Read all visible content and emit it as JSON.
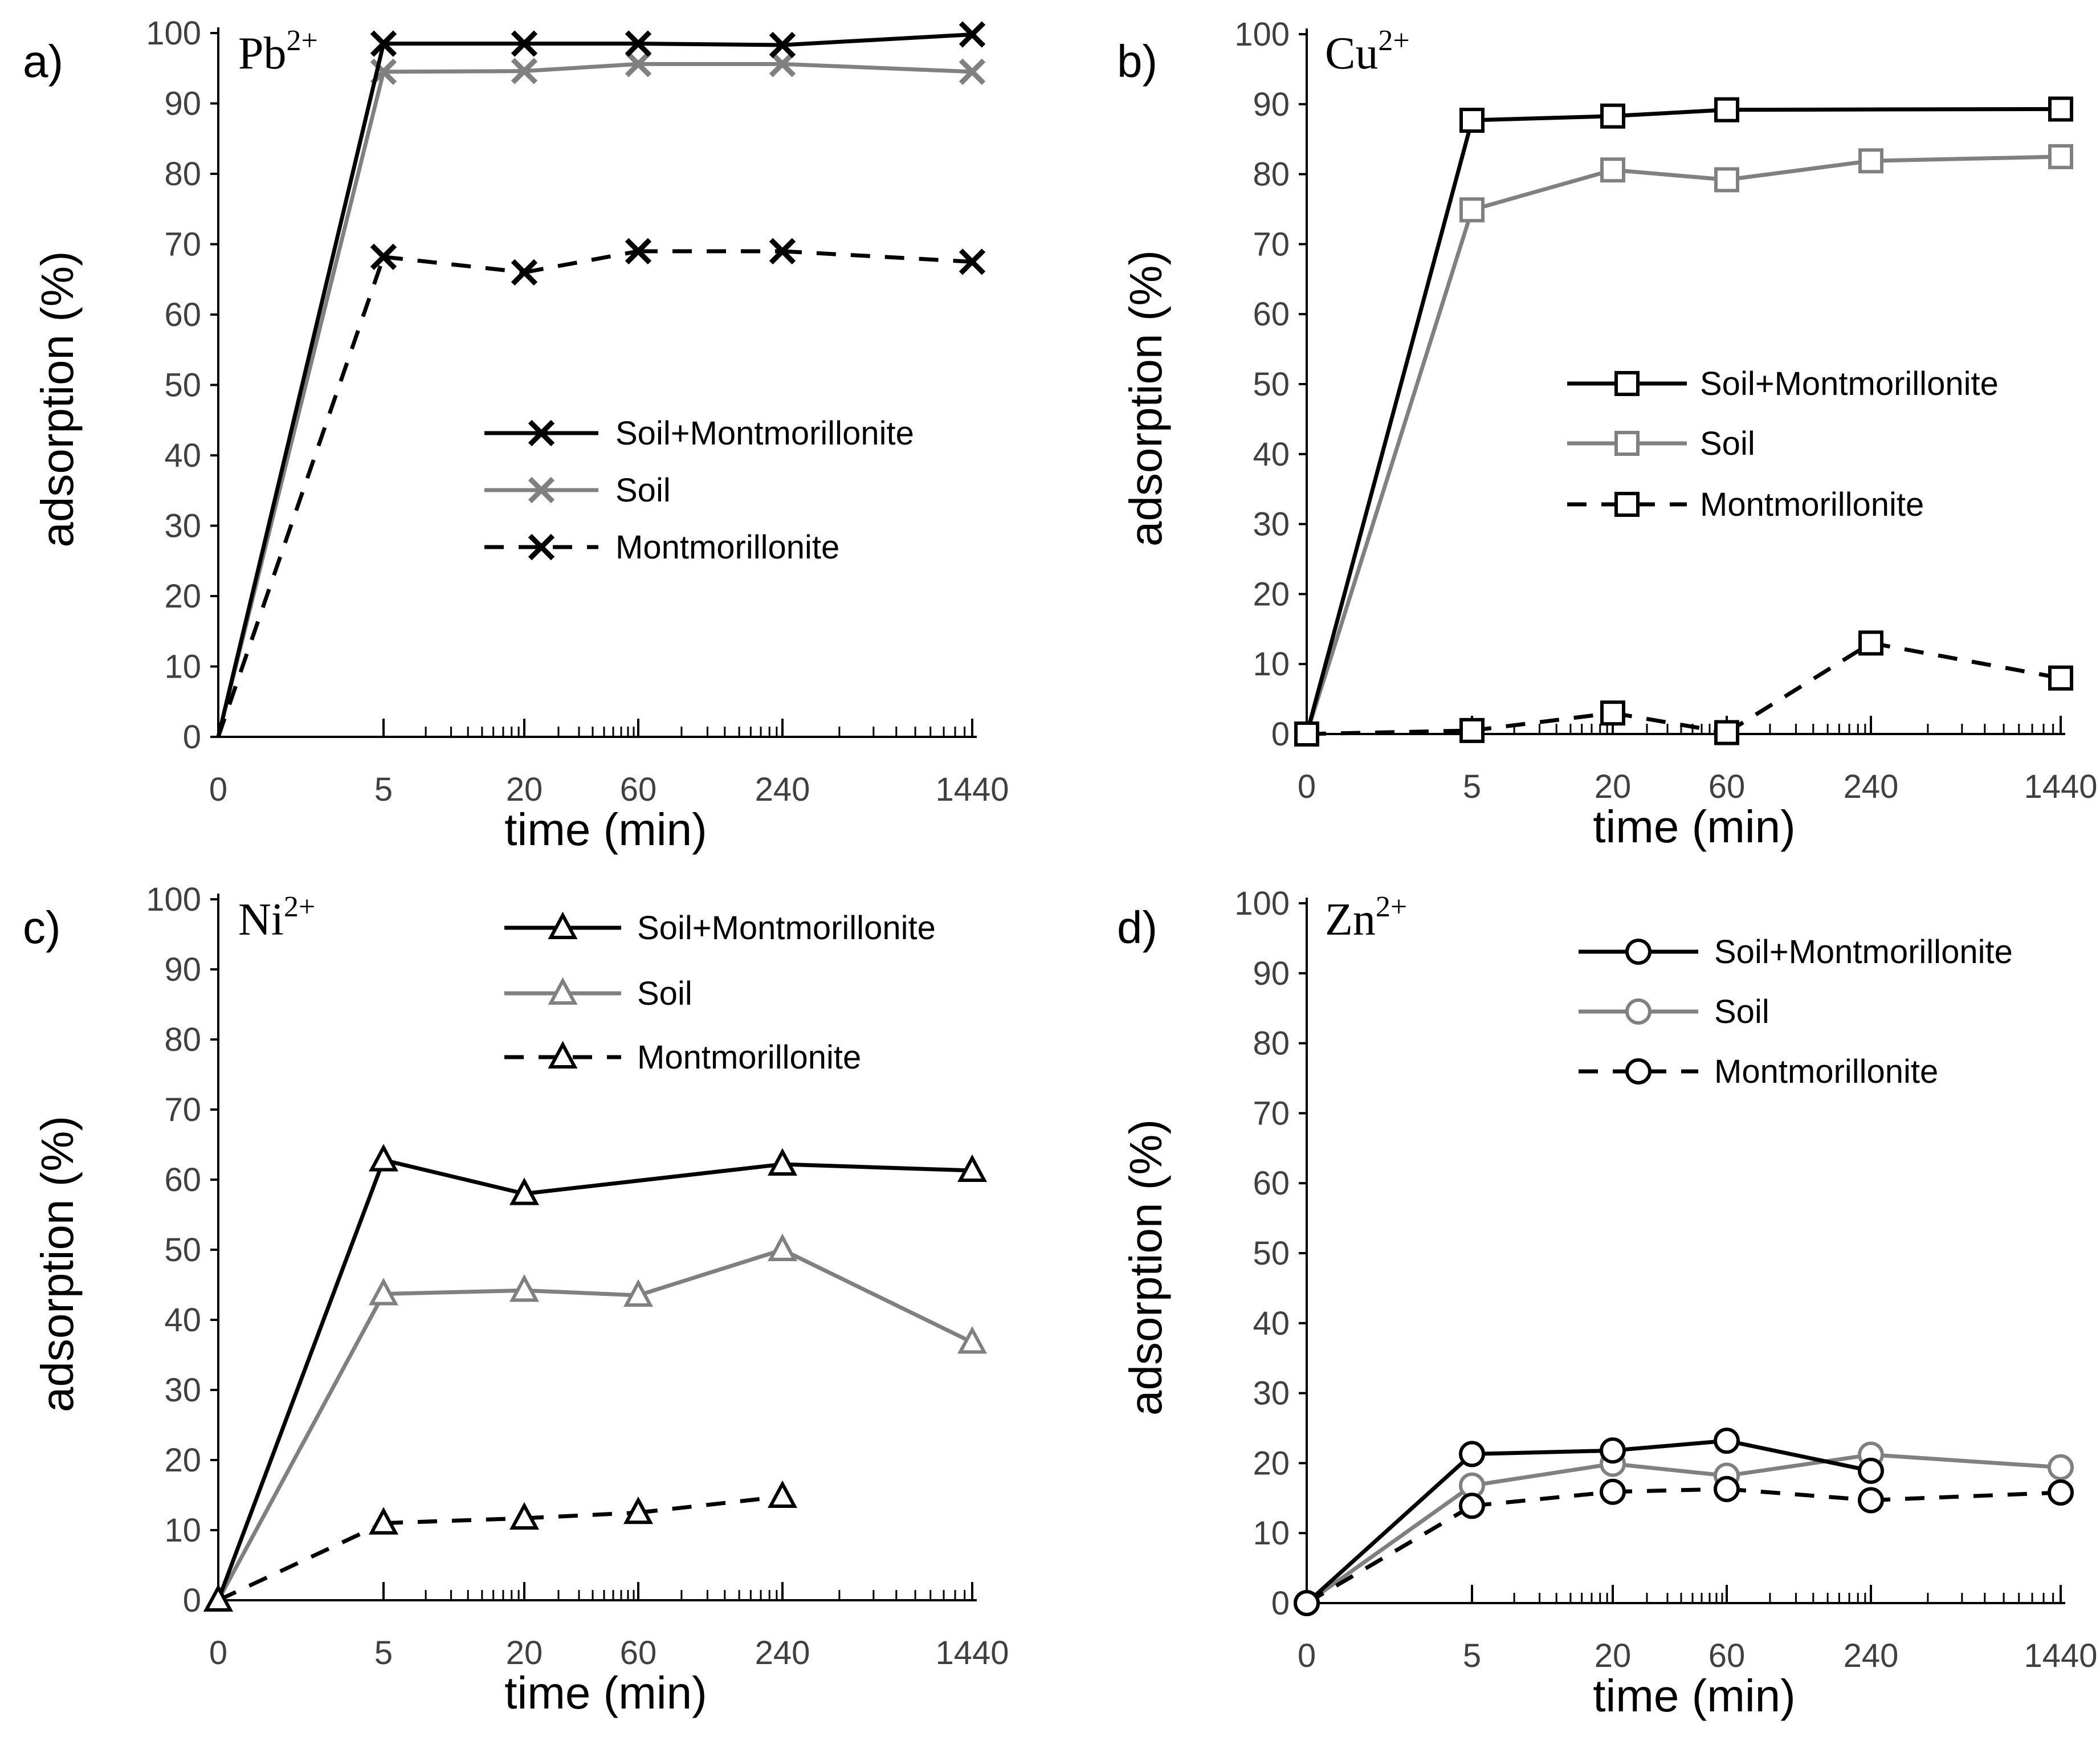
{
  "figure": {
    "x_ticks": [
      "0",
      "5",
      "20",
      "60",
      "240",
      "1440"
    ],
    "y_ticks": [
      "0",
      "10",
      "20",
      "30",
      "40",
      "50",
      "60",
      "70",
      "80",
      "90",
      "100"
    ],
    "ylabel": "adsorption (%)",
    "xlabel": "time (min)"
  },
  "colors": {
    "black": "#000000",
    "gray": "#808080"
  },
  "chart_data": [
    {
      "type": "line",
      "panel_label": "a)",
      "ion": "Pb",
      "ion_charge": "2+",
      "marker": "x-icon",
      "categories": [
        "0",
        "5",
        "20",
        "60",
        "240",
        "1440"
      ],
      "x": [
        0,
        5,
        20,
        60,
        240,
        1440
      ],
      "xlabel": "time (min)",
      "ylabel": "adsorption (%)",
      "ylim": [
        0,
        100
      ],
      "legend_placement": "center-right",
      "series": [
        {
          "name": "Soil+Montmorillonite",
          "color": "#000000",
          "style": "solid",
          "values": [
            0,
            98.5,
            98.5,
            98.5,
            98.3,
            99.8
          ]
        },
        {
          "name": "Soil",
          "color": "#808080",
          "style": "solid",
          "values": [
            0,
            94.5,
            94.6,
            95.6,
            95.6,
            94.5
          ]
        },
        {
          "name": "Montmorillonite",
          "color": "#000000",
          "style": "dashed",
          "values": [
            0,
            68.2,
            66,
            69,
            69,
            67.5
          ]
        }
      ]
    },
    {
      "type": "line",
      "panel_label": "b)",
      "ion": "Cu",
      "ion_charge": "2+",
      "marker": "square-icon",
      "categories": [
        "0",
        "5",
        "20",
        "60",
        "240",
        "1440"
      ],
      "x": [
        0,
        5,
        20,
        60,
        240,
        1440
      ],
      "xlabel": "time (min)",
      "ylabel": "adsorption (%)",
      "ylim": [
        0,
        100
      ],
      "legend_placement": "center-right",
      "series": [
        {
          "name": "Soil+Montmorillonite",
          "color": "#000000",
          "style": "solid",
          "values": [
            0,
            87.7,
            88.3,
            89.2,
            null,
            89.3
          ]
        },
        {
          "name": "Soil",
          "color": "#808080",
          "style": "solid",
          "values": [
            0,
            74.9,
            80.6,
            79.2,
            81.9,
            82.5
          ]
        },
        {
          "name": "Montmorillonite",
          "color": "#000000",
          "style": "dashed",
          "values": [
            0,
            0.5,
            3,
            0.2,
            13,
            8
          ]
        }
      ]
    },
    {
      "type": "line",
      "panel_label": "c)",
      "ion": "Ni",
      "ion_charge": "2+",
      "marker": "triangle-icon",
      "categories": [
        "0",
        "5",
        "20",
        "60",
        "240",
        "1440"
      ],
      "x": [
        0,
        5,
        20,
        60,
        240,
        1440
      ],
      "xlabel": "time (min)",
      "ylabel": "adsorption (%)",
      "ylim": [
        0,
        100
      ],
      "legend_placement": "top-right",
      "series": [
        {
          "name": "Soil+Montmorillonite",
          "color": "#000000",
          "style": "solid",
          "values": [
            0,
            62.8,
            58,
            null,
            62.2,
            61.3
          ]
        },
        {
          "name": "Soil",
          "color": "#808080",
          "style": "solid",
          "values": [
            0,
            43.7,
            44.2,
            43.5,
            50,
            36.8
          ]
        },
        {
          "name": "Montmorillonite",
          "color": "#000000",
          "style": "dashed",
          "values": [
            0,
            11,
            11.7,
            12.5,
            14.8,
            null
          ]
        }
      ]
    },
    {
      "type": "line",
      "panel_label": "d)",
      "ion": "Zn",
      "ion_charge": "2+",
      "marker": "circle-icon",
      "categories": [
        "0",
        "5",
        "20",
        "60",
        "240",
        "1440"
      ],
      "x": [
        0,
        5,
        20,
        60,
        240,
        1440
      ],
      "xlabel": "time (min)",
      "ylabel": "adsorption (%)",
      "ylim": [
        0,
        100
      ],
      "legend_placement": "top-right",
      "series": [
        {
          "name": "Soil+Montmorillonite",
          "color": "#000000",
          "style": "solid",
          "values": [
            0,
            21.3,
            21.8,
            23.2,
            18.9,
            null
          ]
        },
        {
          "name": "Soil",
          "color": "#808080",
          "style": "solid",
          "values": [
            0,
            16.8,
            19.9,
            18.2,
            21.2,
            19.4
          ]
        },
        {
          "name": "Montmorillonite",
          "color": "#000000",
          "style": "dashed",
          "values": [
            0,
            13.9,
            15.9,
            16.3,
            14.7,
            15.8
          ]
        }
      ]
    }
  ]
}
